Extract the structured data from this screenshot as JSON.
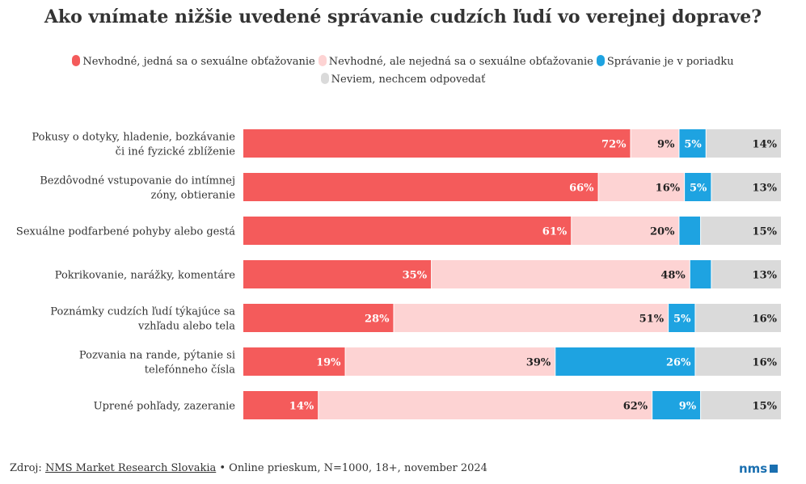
{
  "chart_data": {
    "type": "bar",
    "orientation": "horizontal",
    "stacked": true,
    "title": "Ako vnímate nižšie uvedené správanie cudzích ľudí vo verejnej doprave?",
    "categories": [
      [
        "Pokusy o dotyky, hladenie, bozkávanie",
        "či iné fyzické zblíženie"
      ],
      [
        "Bezdôvodné vstupovanie do intímnej",
        "zóny, obtieranie"
      ],
      [
        "Sexuálne podfarbené pohyby alebo gestá"
      ],
      [
        "Pokrikovanie, narážky, komentáre"
      ],
      [
        "Poznámky cudzích ľudí týkajúce sa",
        "vzhľadu alebo tela"
      ],
      [
        "Pozvania na rande, pýtanie si",
        "telefónneho čísla"
      ],
      [
        "Uprené pohľady, zazeranie"
      ]
    ],
    "series": [
      {
        "name": "Nevhodné, jedná sa o sexuálne obťažovanie",
        "color": "#f45b5b",
        "label_color": "#ffffff",
        "values": [
          72,
          66,
          61,
          35,
          28,
          19,
          14
        ],
        "labels": [
          "72%",
          "66%",
          "61%",
          "35%",
          "28%",
          "19%",
          "14%"
        ]
      },
      {
        "name": "Nevhodné, ale nejedná sa o sexuálne obťažovanie",
        "color": "#fdd3d3",
        "label_color": "#222222",
        "values": [
          9,
          16,
          20,
          48,
          51,
          39,
          62
        ],
        "labels": [
          "9%",
          "16%",
          "20%",
          "48%",
          "51%",
          "39%",
          "62%"
        ]
      },
      {
        "name": "Správanie je v poriadku",
        "color": "#1ea3e1",
        "label_color": "#ffffff",
        "values": [
          5,
          5,
          4,
          4,
          5,
          26,
          9
        ],
        "labels": [
          "5%",
          "5%",
          "",
          "",
          "5%",
          "26%",
          "9%"
        ]
      },
      {
        "name": "Neviem, nechcem odpovedať",
        "color": "#dadada",
        "label_color": "#222222",
        "values": [
          14,
          13,
          15,
          13,
          16,
          16,
          15
        ],
        "labels": [
          "14%",
          "13%",
          "15%",
          "13%",
          "16%",
          "16%",
          "15%"
        ]
      }
    ],
    "xlim": [
      0,
      100
    ],
    "grid": false,
    "legend_position": "top"
  },
  "footer": {
    "source_prefix": "Zdroj: ",
    "source_link": "NMS Market Research Slovakia",
    "source_rest": " • Online prieskum, N=1000, 18+, november 2024",
    "logo": "nms"
  }
}
